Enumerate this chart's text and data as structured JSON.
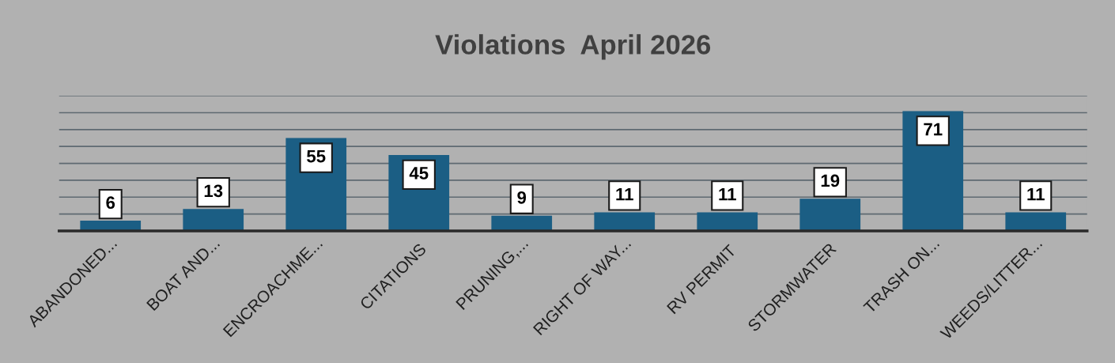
{
  "chart_data": {
    "type": "bar",
    "title": "Violations  April 2026",
    "categories": [
      "ABANDONED...",
      "BOAT AND...",
      "ENCROACHME...",
      "CITATIONS",
      "PRUNING,...",
      "RIGHT OF WAY...",
      "RV PERMIT",
      "STORMWATER",
      "TRASH ON...",
      "WEEDS/LITTER..."
    ],
    "values": [
      6,
      13,
      55,
      45,
      9,
      11,
      11,
      19,
      71,
      11
    ],
    "color": "#1b5e84",
    "ylim": [
      0,
      80
    ],
    "yticks": [
      {
        "value": 0,
        "label": null
      },
      {
        "value": 10,
        "label": null
      },
      {
        "value": 20,
        "label": null
      },
      {
        "value": 30,
        "label": null
      },
      {
        "value": 40,
        "label": null
      },
      {
        "value": 50,
        "label": null
      },
      {
        "value": 60,
        "label": null
      },
      {
        "value": 70,
        "label": null
      },
      {
        "value": 80,
        "label": null
      }
    ],
    "grid": "y",
    "tick_labels": "x",
    "data_labels": true
  }
}
